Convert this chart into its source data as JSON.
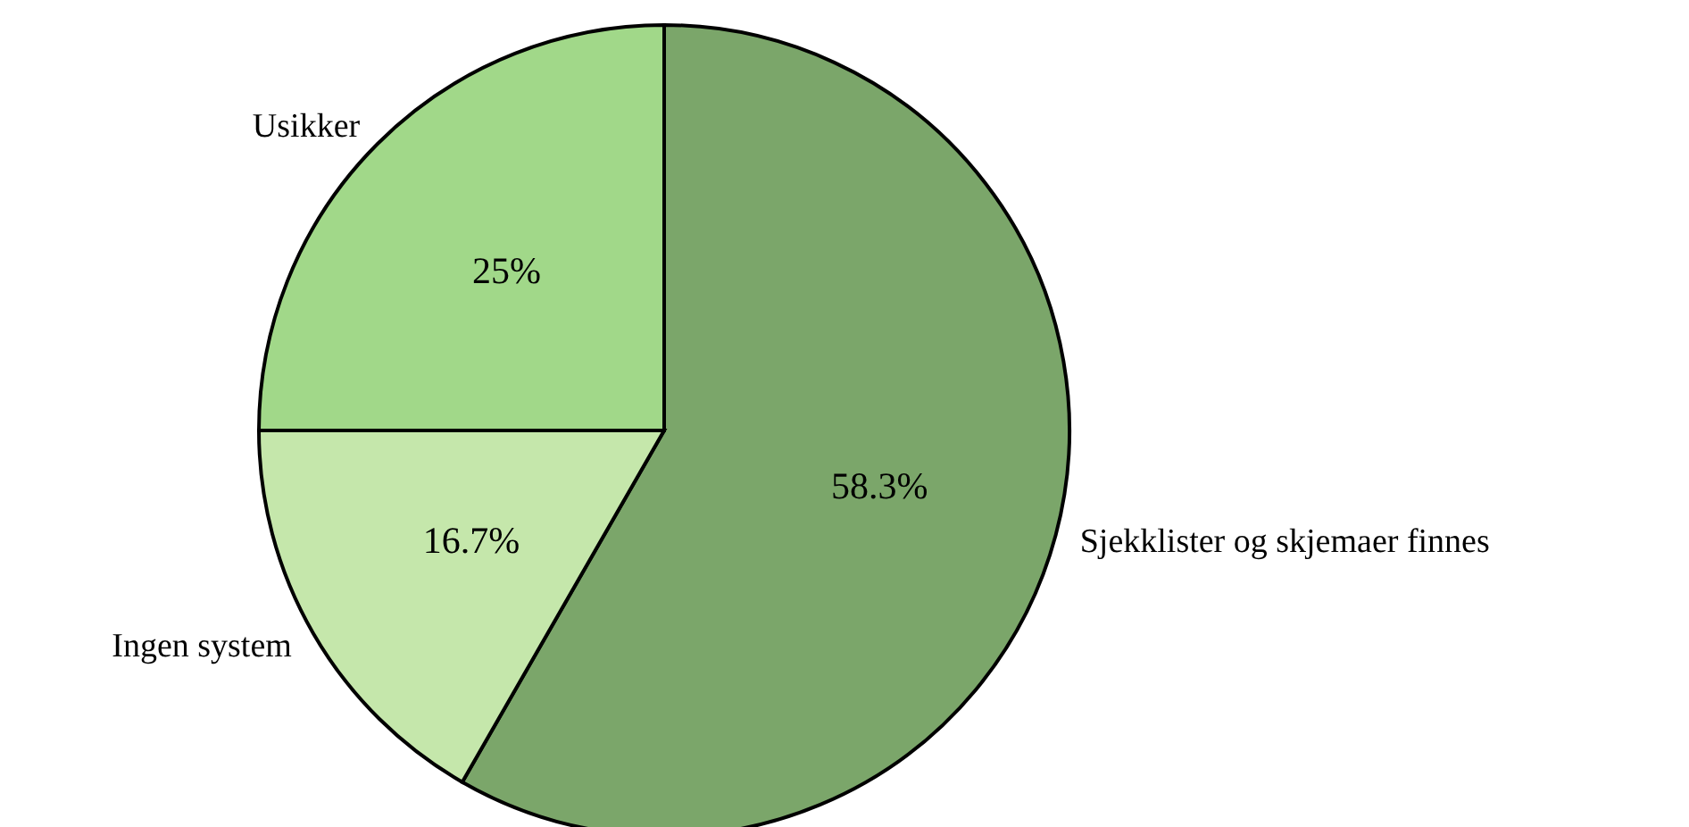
{
  "chart_data": {
    "type": "pie",
    "categories": [
      "Sjekklister og skjemaer finnes",
      "Ingen system",
      "Usikker"
    ],
    "values": [
      58.3,
      16.7,
      25
    ],
    "colors": [
      "#7ba66a",
      "#c5e7ab",
      "#a1d889"
    ],
    "value_labels": [
      "58.3%",
      "16.7%",
      "25%"
    ]
  }
}
